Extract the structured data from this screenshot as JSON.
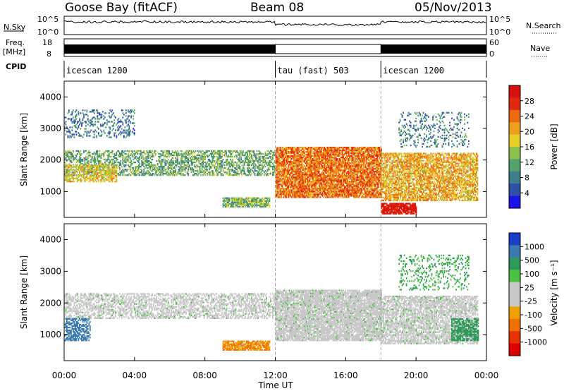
{
  "header": {
    "station": "Goose Bay (fitACF)",
    "beam": "Beam 08",
    "date": "05/Nov/2013"
  },
  "strips": {
    "nsky_label": "N.Sky",
    "nsky_ticks": [
      "10^5",
      "10^0"
    ],
    "nsearch_label": "N.Search",
    "freq_label_1": "Freq.",
    "freq_label_2": "[MHz]",
    "freq_ticks": [
      "18",
      "8"
    ],
    "nave_label": "Nave",
    "nave_ticks": [
      "60",
      "0"
    ],
    "cpid_label": "CPID",
    "cpid_modes": [
      {
        "name": "icescan 1200",
        "start_hour": 0,
        "end_hour": 12
      },
      {
        "name": "tau (fast) 503",
        "start_hour": 12,
        "end_hour": 18
      },
      {
        "name": "icescan 1200",
        "start_hour": 18,
        "end_hour": 24
      }
    ]
  },
  "colors": {
    "power_scale": [
      "#1a14e6",
      "#2f4fa8",
      "#3f7f8a",
      "#52a36b",
      "#8cc04a",
      "#e8d02a",
      "#f0a020",
      "#ee6a10",
      "#e02a10",
      "#d81010"
    ],
    "velocity_scale": [
      "#1a3fc8",
      "#3a7ab0",
      "#2e9a5a",
      "#4cc040",
      "#c8c8c8",
      "#c8c8c8",
      "#f0a000",
      "#f07000",
      "#e83000",
      "#e00000"
    ]
  },
  "chart_data": [
    {
      "type": "heatmap",
      "panel": "power",
      "ylabel": "Slant Range [km]",
      "colorbar_label": "Power [dB]",
      "colorbar_ticks": [
        "28",
        "24",
        "20",
        "16",
        "12",
        "8",
        "4"
      ],
      "x_ticks": [
        "00:00",
        "04:00",
        "08:00",
        "12:00",
        "16:00",
        "20:00",
        "00:00"
      ],
      "y_ticks": [
        "4000",
        "3000",
        "2000",
        "1000"
      ],
      "xlim_hours": [
        0,
        24
      ],
      "ylim_km": [
        180,
        4500
      ],
      "clim_db": [
        0,
        30
      ],
      "regions": [
        {
          "desc": "band",
          "t0": 0.0,
          "t1": 12.0,
          "r0": 1500,
          "r1": 2300,
          "value": 11,
          "density": 0.55
        },
        {
          "desc": "band",
          "t0": 0.0,
          "t1": 3.0,
          "r0": 1300,
          "r1": 1800,
          "value": 17,
          "density": 0.6
        },
        {
          "desc": "band",
          "t0": 0.0,
          "t1": 4.0,
          "r0": 2700,
          "r1": 3600,
          "value": 7,
          "density": 0.25
        },
        {
          "desc": "band",
          "t0": 9.0,
          "t1": 11.7,
          "r0": 500,
          "r1": 800,
          "value": 12,
          "density": 0.8
        },
        {
          "desc": "band",
          "t0": 12.0,
          "t1": 18.0,
          "r0": 800,
          "r1": 2400,
          "value": 22,
          "density": 0.85
        },
        {
          "desc": "band",
          "t0": 18.0,
          "t1": 23.5,
          "r0": 700,
          "r1": 2200,
          "value": 19,
          "density": 0.7
        },
        {
          "desc": "band",
          "t0": 18.0,
          "t1": 20.0,
          "r0": 280,
          "r1": 600,
          "value": 28,
          "density": 0.9
        },
        {
          "desc": "band",
          "t0": 19.0,
          "t1": 23.0,
          "r0": 2400,
          "r1": 3500,
          "value": 8,
          "density": 0.2
        }
      ]
    },
    {
      "type": "heatmap",
      "panel": "velocity",
      "ylabel": "Slant Range [km]",
      "xlabel": "Time UT",
      "colorbar_label": "Velocity [m s⁻¹]",
      "colorbar_ticks": [
        "1000",
        "500",
        "100",
        "25",
        "-25",
        "-100",
        "-500",
        "-1000"
      ],
      "x_ticks": [
        "00:00",
        "04:00",
        "08:00",
        "12:00",
        "16:00",
        "20:00",
        "00:00"
      ],
      "y_ticks": [
        "4000",
        "3000",
        "2000",
        "1000"
      ],
      "xlim_hours": [
        0,
        24
      ],
      "ylim_km": [
        180,
        4500
      ],
      "clim_ms": [
        -1000,
        1000
      ],
      "regions": [
        {
          "desc": "band",
          "t0": 0.0,
          "t1": 12.0,
          "r0": 1500,
          "r1": 2300,
          "value": 0,
          "density": 0.55
        },
        {
          "desc": "band",
          "t0": 0.0,
          "t1": 1.5,
          "r0": 800,
          "r1": 1500,
          "value": 600,
          "density": 0.6
        },
        {
          "desc": "band",
          "t0": 9.0,
          "t1": 11.7,
          "r0": 500,
          "r1": 800,
          "value": -300,
          "density": 0.8
        },
        {
          "desc": "band",
          "t0": 12.0,
          "t1": 18.0,
          "r0": 800,
          "r1": 2400,
          "value": 0,
          "density": 0.85
        },
        {
          "desc": "band",
          "t0": 18.0,
          "t1": 23.5,
          "r0": 700,
          "r1": 2200,
          "value": 0,
          "density": 0.7
        },
        {
          "desc": "band",
          "t0": 22.0,
          "t1": 23.5,
          "r0": 800,
          "r1": 1500,
          "value": 120,
          "density": 0.6
        },
        {
          "desc": "band",
          "t0": 19.0,
          "t1": 23.0,
          "r0": 2400,
          "r1": 3500,
          "value": 60,
          "density": 0.2
        }
      ]
    }
  ]
}
